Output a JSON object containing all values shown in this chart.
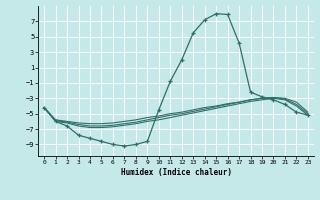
{
  "xlabel": "Humidex (Indice chaleur)",
  "background_color": "#c5e8e8",
  "grid_color": "#ffffff",
  "line_color": "#2d7068",
  "xlim": [
    -0.5,
    23.5
  ],
  "ylim": [
    -10.5,
    9.0
  ],
  "yticks": [
    -9,
    -7,
    -5,
    -3,
    -1,
    1,
    3,
    5,
    7
  ],
  "xticks": [
    0,
    1,
    2,
    3,
    4,
    5,
    6,
    7,
    8,
    9,
    10,
    11,
    12,
    13,
    14,
    15,
    16,
    17,
    18,
    19,
    20,
    21,
    22,
    23
  ],
  "lines": [
    {
      "x": [
        0,
        1,
        2,
        3,
        4,
        5,
        6,
        7,
        8,
        9,
        10,
        11,
        12,
        13,
        14,
        15,
        16,
        17,
        18,
        19,
        20,
        21,
        22,
        23
      ],
      "y": [
        -4.2,
        -6.0,
        -6.6,
        -7.8,
        -8.2,
        -8.6,
        -9.0,
        -9.2,
        -9.0,
        -8.6,
        -4.5,
        -0.8,
        2.0,
        5.5,
        7.2,
        8.0,
        7.9,
        4.2,
        -2.2,
        -2.8,
        -3.2,
        -3.8,
        -4.8,
        -5.2
      ],
      "marker": true
    },
    {
      "x": [
        0,
        1,
        2,
        3,
        4,
        5,
        6,
        7,
        8,
        9,
        10,
        11,
        12,
        13,
        14,
        15,
        16,
        17,
        18,
        19,
        20,
        21,
        22,
        23
      ],
      "y": [
        -4.2,
        -5.8,
        -6.0,
        -6.2,
        -6.3,
        -6.3,
        -6.2,
        -6.0,
        -5.8,
        -5.5,
        -5.3,
        -5.0,
        -4.8,
        -4.5,
        -4.2,
        -4.0,
        -3.7,
        -3.5,
        -3.2,
        -3.0,
        -2.9,
        -3.0,
        -3.5,
        -4.8
      ],
      "marker": false
    },
    {
      "x": [
        0,
        1,
        2,
        3,
        4,
        5,
        6,
        7,
        8,
        9,
        10,
        11,
        12,
        13,
        14,
        15,
        16,
        17,
        18,
        19,
        20,
        21,
        22,
        23
      ],
      "y": [
        -4.2,
        -5.9,
        -6.1,
        -6.4,
        -6.6,
        -6.6,
        -6.5,
        -6.3,
        -6.1,
        -5.8,
        -5.5,
        -5.2,
        -5.0,
        -4.7,
        -4.4,
        -4.1,
        -3.8,
        -3.5,
        -3.2,
        -3.0,
        -2.9,
        -3.1,
        -3.8,
        -5.0
      ],
      "marker": false
    },
    {
      "x": [
        0,
        1,
        2,
        3,
        4,
        5,
        6,
        7,
        8,
        9,
        10,
        11,
        12,
        13,
        14,
        15,
        16,
        17,
        18,
        19,
        20,
        21,
        22,
        23
      ],
      "y": [
        -4.2,
        -6.0,
        -6.2,
        -6.6,
        -6.8,
        -6.8,
        -6.7,
        -6.5,
        -6.3,
        -6.0,
        -5.8,
        -5.5,
        -5.2,
        -4.9,
        -4.6,
        -4.3,
        -4.0,
        -3.7,
        -3.4,
        -3.2,
        -3.0,
        -3.2,
        -4.0,
        -5.2
      ],
      "marker": false
    }
  ]
}
